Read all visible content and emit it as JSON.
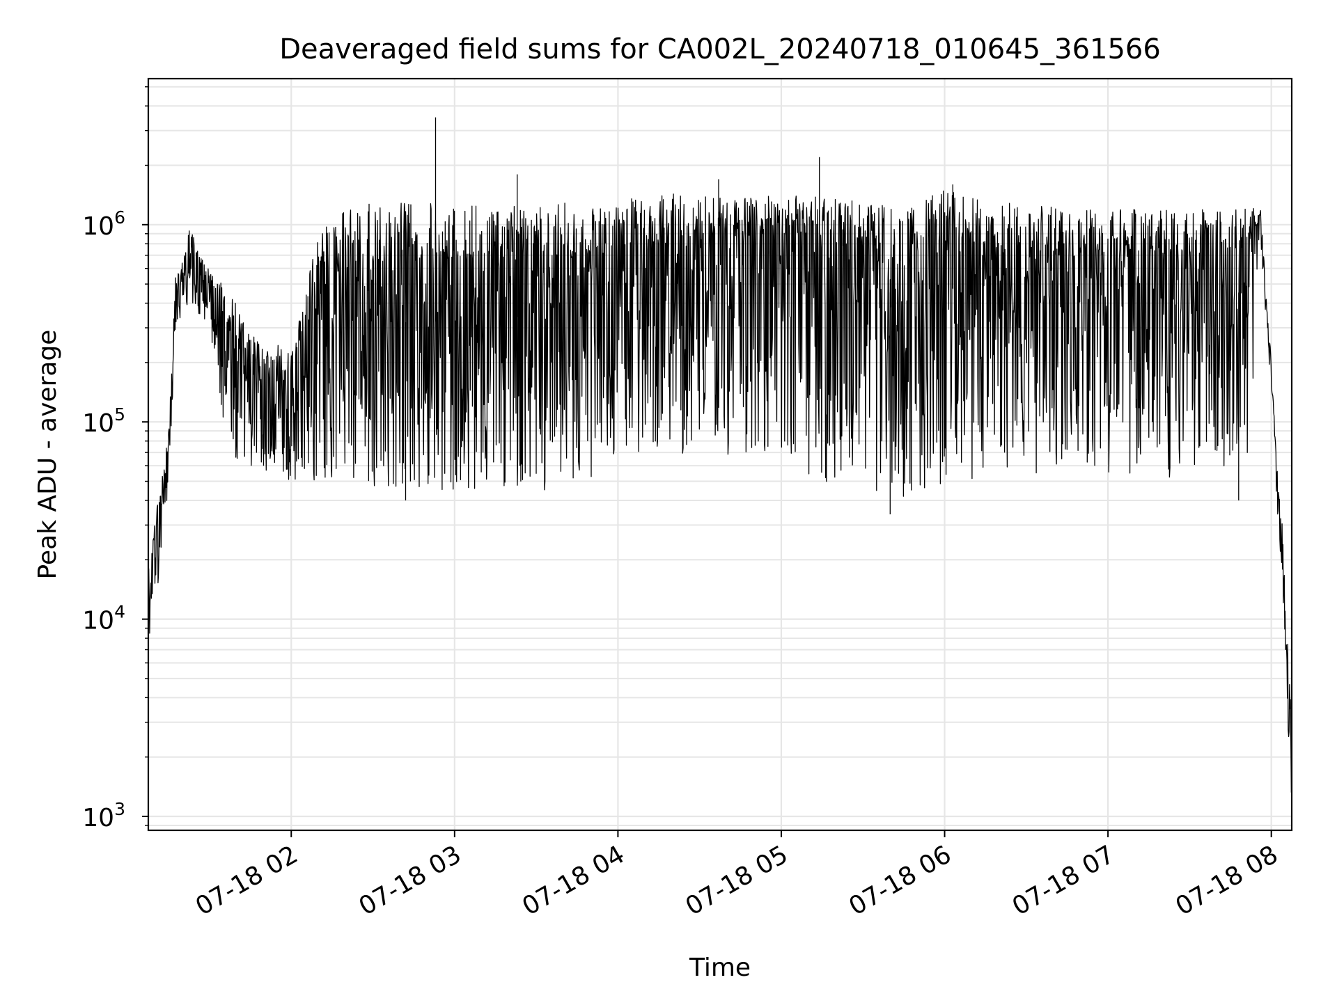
{
  "colors": {
    "line": "#000000",
    "grid": "#e6e6e6",
    "axes": "#000000",
    "background": "#ffffff"
  },
  "chart_data": {
    "type": "line",
    "title": "Deaveraged field sums for CA002L_20240718_010645_361566",
    "xlabel": "Time",
    "ylabel": "Peak ADU - average",
    "yscale": "log",
    "ylim": [
      850,
      5500000
    ],
    "xlim": [
      "2024-07-18 01:07:30",
      "2024-07-18 08:07:30"
    ],
    "grid": true,
    "legend": "none",
    "x_ticks": [
      {
        "t": "2024-07-18 02:00",
        "label": "07-18 02"
      },
      {
        "t": "2024-07-18 03:00",
        "label": "07-18 03"
      },
      {
        "t": "2024-07-18 04:00",
        "label": "07-18 04"
      },
      {
        "t": "2024-07-18 05:00",
        "label": "07-18 05"
      },
      {
        "t": "2024-07-18 06:00",
        "label": "07-18 06"
      },
      {
        "t": "2024-07-18 07:00",
        "label": "07-18 07"
      },
      {
        "t": "2024-07-18 08:00",
        "label": "07-18 08"
      }
    ],
    "y_ticks": [
      {
        "v": 1000,
        "base": "10",
        "exp": "3"
      },
      {
        "v": 10000,
        "base": "10",
        "exp": "4"
      },
      {
        "v": 100000,
        "base": "10",
        "exp": "5"
      },
      {
        "v": 1000000,
        "base": "10",
        "exp": "6"
      }
    ],
    "series": [
      {
        "x": [
          "2024-07-18 01:07:30",
          "2024-07-18 01:09:00",
          "2024-07-18 01:11:00",
          "2024-07-18 01:13:00",
          "2024-07-18 01:15:00",
          "2024-07-18 01:17:30",
          "2024-07-18 01:20:00",
          "2024-07-18 01:23:00",
          "2024-07-18 01:26:00",
          "2024-07-18 01:30:00",
          "2024-07-18 01:35:00",
          "2024-07-18 01:40:00",
          "2024-07-18 01:45:00",
          "2024-07-18 01:50:00",
          "2024-07-18 01:55:00",
          "2024-07-18 02:00:00",
          "2024-07-18 02:10:00",
          "2024-07-18 02:20:00",
          "2024-07-18 02:30:00",
          "2024-07-18 02:40:00",
          "2024-07-18 02:50:00",
          "2024-07-18 03:00:00",
          "2024-07-18 03:15:00",
          "2024-07-18 03:30:00",
          "2024-07-18 03:45:00",
          "2024-07-18 04:00:00",
          "2024-07-18 04:15:00",
          "2024-07-18 04:30:00",
          "2024-07-18 04:45:00",
          "2024-07-18 05:00:00",
          "2024-07-18 05:15:00",
          "2024-07-18 05:30:00",
          "2024-07-18 05:45:00",
          "2024-07-18 06:00:00",
          "2024-07-18 06:15:00",
          "2024-07-18 06:30:00",
          "2024-07-18 06:45:00",
          "2024-07-18 07:00:00",
          "2024-07-18 07:15:00",
          "2024-07-18 07:30:00",
          "2024-07-18 07:45:00",
          "2024-07-18 07:52:00",
          "2024-07-18 07:56:00",
          "2024-07-18 07:58:00",
          "2024-07-18 08:00:00",
          "2024-07-18 08:02:00",
          "2024-07-18 08:04:00",
          "2024-07-18 08:06:00",
          "2024-07-18 08:07:30"
        ],
        "hi": [
          18000,
          25000,
          40000,
          60000,
          90000,
          600000,
          650000,
          1000000,
          700000,
          600000,
          500000,
          400000,
          300000,
          250000,
          250000,
          220000,
          900000,
          1200000,
          1300000,
          1300000,
          1300000,
          1250000,
          1250000,
          1300000,
          1300000,
          1400000,
          1400000,
          1500000,
          1400000,
          1400000,
          1400000,
          1300000,
          1200000,
          1500000,
          1300000,
          1300000,
          1200000,
          1200000,
          1200000,
          1200000,
          1200000,
          1250000,
          1200000,
          500000,
          200000,
          60000,
          30000,
          8000,
          3000
        ],
        "lo": [
          6500,
          9500,
          14000,
          30000,
          45000,
          300000,
          350000,
          400000,
          350000,
          300000,
          100000,
          60000,
          55000,
          55000,
          50000,
          50000,
          50000,
          50000,
          45000,
          45000,
          45000,
          45000,
          45000,
          45000,
          45000,
          70000,
          65000,
          65000,
          70000,
          65000,
          50000,
          45000,
          40000,
          45000,
          50000,
          55000,
          55000,
          50000,
          50000,
          55000,
          60000,
          70000,
          900000,
          300000,
          150000,
          40000,
          15000,
          3000,
          1000
        ],
        "base": [
          12000,
          18000,
          28000,
          45000,
          65000,
          450000,
          500000,
          650000,
          500000,
          420000,
          250000,
          180000,
          150000,
          140000,
          130000,
          120000,
          220000,
          280000,
          300000,
          320000,
          320000,
          330000,
          330000,
          350000,
          360000,
          420000,
          450000,
          520000,
          550000,
          560000,
          520000,
          480000,
          440000,
          480000,
          450000,
          420000,
          400000,
          380000,
          380000,
          400000,
          420000,
          500000,
          1100000,
          400000,
          180000,
          50000,
          20000,
          5000,
          2500
        ],
        "spikes": [
          {
            "t": "2024-07-18 02:53:00",
            "v": 3500000
          },
          {
            "t": "2024-07-18 05:14:00",
            "v": 2200000
          },
          {
            "t": "2024-07-18 03:23:00",
            "v": 1800000
          },
          {
            "t": "2024-07-18 04:37:00",
            "v": 1700000
          },
          {
            "t": "2024-07-18 05:40:00",
            "v": 34000
          },
          {
            "t": "2024-07-18 02:42:00",
            "v": 40000
          },
          {
            "t": "2024-07-18 06:03:00",
            "v": 1600000
          },
          {
            "t": "2024-07-18 07:48:00",
            "v": 40000
          }
        ]
      }
    ]
  }
}
